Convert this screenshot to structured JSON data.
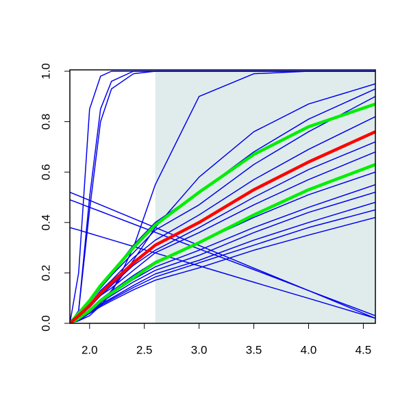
{
  "chart_data": {
    "type": "line",
    "x": [
      1.82,
      1.9,
      2.0,
      2.1,
      2.2,
      2.4,
      2.6,
      3.0,
      3.5,
      4.0,
      4.61
    ],
    "xlim": [
      1.82,
      4.61
    ],
    "ylim": [
      0,
      1
    ],
    "xticks": [
      {
        "value": 2,
        "label": "2.0"
      },
      {
        "value": 2.5,
        "label": "2.5"
      },
      {
        "value": 3,
        "label": "3.0"
      },
      {
        "value": 3.5,
        "label": "3.5"
      },
      {
        "value": 4,
        "label": "4.0"
      },
      {
        "value": 4.5,
        "label": "4.5"
      }
    ],
    "yticks": [
      {
        "value": 0,
        "label": "0.0"
      },
      {
        "value": 0.2,
        "label": "0.2"
      },
      {
        "value": 0.4,
        "label": "0.4"
      },
      {
        "value": 0.6,
        "label": "0.6"
      },
      {
        "value": 0.8,
        "label": "0.8"
      },
      {
        "value": 1,
        "label": "1.0"
      }
    ],
    "shaded_region": {
      "xlim": [
        2.6,
        4.61
      ],
      "ylim": [
        0,
        1
      ],
      "color": "#e0ecec"
    },
    "series": [
      {
        "color": "#0000ee",
        "linewidth": 1.5,
        "values": [
          0,
          0.2,
          0.85,
          0.98,
          1,
          1,
          1,
          1,
          1,
          1,
          1
        ]
      },
      {
        "color": "#0000ee",
        "linewidth": 1.5,
        "values": [
          0,
          0.05,
          0.5,
          0.85,
          0.96,
          1,
          1,
          1,
          1,
          1,
          1
        ]
      },
      {
        "color": "#0000ee",
        "linewidth": 1.5,
        "values": [
          0,
          0.05,
          0.45,
          0.8,
          0.93,
          0.99,
          1,
          1,
          1,
          1,
          1
        ]
      },
      {
        "color": "#0000ee",
        "linewidth": 1.5,
        "values": [
          0,
          0.01,
          0.03,
          0.07,
          0.12,
          0.3,
          0.55,
          0.9,
          0.99,
          1,
          1
        ]
      },
      {
        "color": "#0000ee",
        "linewidth": 1.5,
        "values": [
          0,
          0.01,
          0.04,
          0.08,
          0.13,
          0.25,
          0.38,
          0.58,
          0.76,
          0.87,
          0.95
        ]
      },
      {
        "color": "#0000ee",
        "linewidth": 1.5,
        "values": [
          0.52,
          0.506,
          0.488,
          0.47,
          0.452,
          0.416,
          0.38,
          0.309,
          0.219,
          0.13,
          0.02
        ]
      },
      {
        "color": "#0000ee",
        "linewidth": 1.5,
        "values": [
          0.49,
          0.477,
          0.46,
          0.444,
          0.427,
          0.394,
          0.361,
          0.295,
          0.213,
          0.13,
          0.03
        ]
      },
      {
        "color": "#0000ee",
        "linewidth": 1.5,
        "values": [
          0.38,
          0.37,
          0.357,
          0.344,
          0.331,
          0.305,
          0.279,
          0.228,
          0.163,
          0.099,
          0.02
        ]
      },
      {
        "color": "#0000ee",
        "linewidth": 1.5,
        "values": [
          0,
          0.04,
          0.09,
          0.15,
          0.2,
          0.31,
          0.4,
          0.52,
          0.68,
          0.81,
          0.93
        ]
      },
      {
        "color": "#0000ee",
        "linewidth": 1.5,
        "values": [
          0,
          0.035,
          0.083,
          0.14,
          0.19,
          0.28,
          0.37,
          0.47,
          0.63,
          0.76,
          0.9
        ]
      },
      {
        "color": "#0000ee",
        "linewidth": 1.5,
        "values": [
          0,
          0.03,
          0.075,
          0.13,
          0.17,
          0.26,
          0.33,
          0.43,
          0.57,
          0.69,
          0.82
        ]
      },
      {
        "color": "#0000ee",
        "linewidth": 1.5,
        "values": [
          0,
          0.028,
          0.066,
          0.11,
          0.15,
          0.23,
          0.29,
          0.38,
          0.5,
          0.61,
          0.72
        ]
      },
      {
        "color": "#0000ee",
        "linewidth": 1.5,
        "values": [
          0,
          0.027,
          0.063,
          0.11,
          0.14,
          0.21,
          0.28,
          0.36,
          0.47,
          0.57,
          0.68
        ]
      },
      {
        "color": "#0000ee",
        "linewidth": 1.5,
        "values": [
          0,
          0.023,
          0.055,
          0.095,
          0.127,
          0.19,
          0.245,
          0.32,
          0.42,
          0.51,
          0.6
        ]
      },
      {
        "color": "#0000ee",
        "linewidth": 1.5,
        "values": [
          0,
          0.02,
          0.05,
          0.087,
          0.116,
          0.174,
          0.224,
          0.29,
          0.38,
          0.46,
          0.55
        ]
      },
      {
        "color": "#0000ee",
        "linewidth": 1.5,
        "values": [
          0,
          0.02,
          0.048,
          0.082,
          0.11,
          0.164,
          0.21,
          0.27,
          0.36,
          0.44,
          0.52
        ]
      },
      {
        "color": "#0000ee",
        "linewidth": 1.5,
        "values": [
          0,
          0.019,
          0.044,
          0.076,
          0.1,
          0.15,
          0.196,
          0.25,
          0.33,
          0.4,
          0.48
        ]
      },
      {
        "color": "#0000ee",
        "linewidth": 1.5,
        "values": [
          0,
          0.018,
          0.041,
          0.071,
          0.095,
          0.142,
          0.184,
          0.24,
          0.31,
          0.38,
          0.45
        ]
      },
      {
        "color": "#0000ee",
        "linewidth": 1.5,
        "values": [
          0,
          0.016,
          0.039,
          0.066,
          0.089,
          0.133,
          0.171,
          0.22,
          0.29,
          0.35,
          0.42
        ]
      },
      {
        "color": "#00ee00",
        "linewidth": 4.5,
        "values": [
          0,
          0.04,
          0.09,
          0.15,
          0.2,
          0.3,
          0.39,
          0.52,
          0.67,
          0.78,
          0.87
        ]
      },
      {
        "color": "#00ee00",
        "linewidth": 4.5,
        "values": [
          0,
          0.02,
          0.05,
          0.09,
          0.12,
          0.18,
          0.24,
          0.32,
          0.43,
          0.53,
          0.63
        ]
      },
      {
        "color": "#ff0000",
        "linewidth": 4.5,
        "values": [
          0,
          0.03,
          0.07,
          0.12,
          0.16,
          0.24,
          0.31,
          0.4,
          0.53,
          0.64,
          0.76
        ]
      }
    ]
  }
}
